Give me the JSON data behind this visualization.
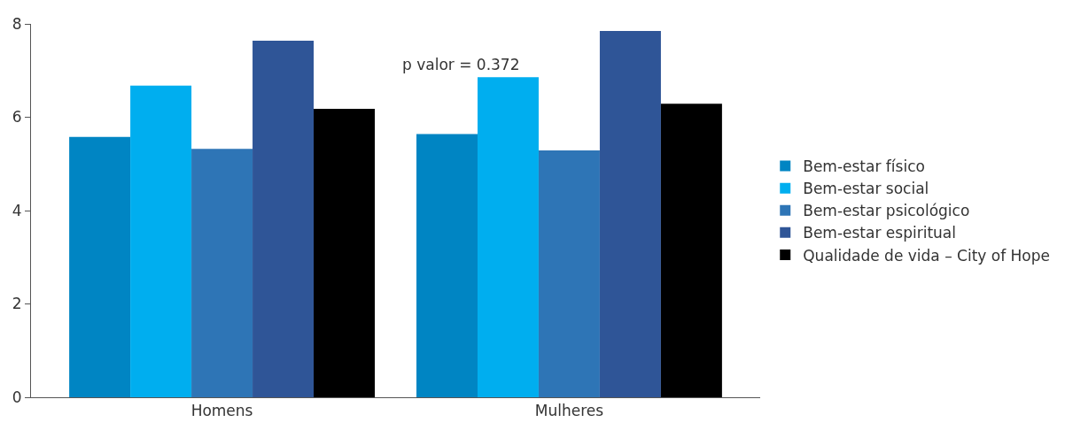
{
  "chart_data": {
    "type": "bar",
    "categories": [
      "Homens",
      "Mulheres"
    ],
    "series": [
      {
        "name": "Bem-estar físico",
        "color": "#0085c3",
        "values": [
          5.58,
          5.64
        ]
      },
      {
        "name": "Bem-estar social",
        "color": "#00aeef",
        "values": [
          6.68,
          6.86
        ]
      },
      {
        "name": "Bem-estar psicológico",
        "color": "#2e75b6",
        "values": [
          5.32,
          5.29
        ]
      },
      {
        "name": "Bem-estar espiritual",
        "color": "#2f5597",
        "values": [
          7.64,
          7.85
        ]
      },
      {
        "name": "Qualidade de vida – City of Hope",
        "color": "#000000",
        "values": [
          6.18,
          6.29
        ]
      }
    ],
    "ylim": [
      0,
      8
    ],
    "yticks": [
      0,
      2,
      4,
      6,
      8
    ],
    "legend": "right",
    "annotations": [
      "p valor = 0.372"
    ]
  }
}
